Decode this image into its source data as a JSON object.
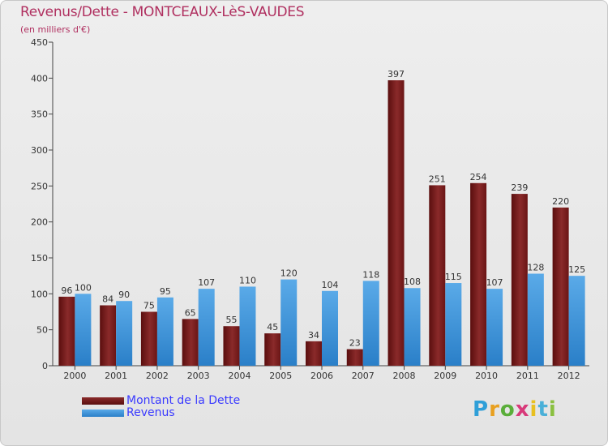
{
  "title": "Revenus/Dette - MONTCEAUX-LèS-VAUDES",
  "subtitle": "(en milliers d'€)",
  "brand": "Proxiti",
  "chart_data": {
    "type": "bar",
    "title": "Revenus/Dette - MONTCEAUX-LèS-VAUDES",
    "ylabel": "(en milliers d'€)",
    "xlabel": "",
    "ylim": [
      0,
      450
    ],
    "yticks": [
      0,
      50,
      100,
      150,
      200,
      250,
      300,
      350,
      400,
      450
    ],
    "grid": false,
    "legend_position": "bottom-left",
    "categories": [
      "2000",
      "2001",
      "2002",
      "2003",
      "2004",
      "2005",
      "2006",
      "2007",
      "2008",
      "2009",
      "2010",
      "2011",
      "2012"
    ],
    "series": [
      {
        "name": "Montant de la Dette",
        "color": "#7a1c1c",
        "values": [
          96,
          84,
          75,
          65,
          55,
          45,
          34,
          23,
          397,
          251,
          254,
          239,
          220
        ]
      },
      {
        "name": "Revenus",
        "color": "#3d8fd6",
        "values": [
          100,
          90,
          95,
          107,
          110,
          120,
          104,
          118,
          108,
          115,
          107,
          128,
          125
        ]
      }
    ]
  }
}
